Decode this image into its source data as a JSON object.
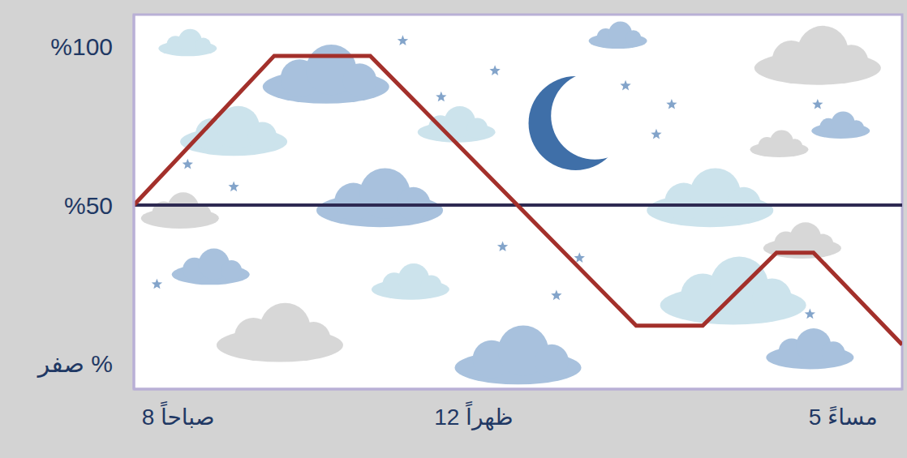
{
  "chart_data": {
    "type": "line",
    "x": [
      7.4,
      9.3,
      10.6,
      14.2,
      15.1,
      16.1,
      16.6,
      17.8
    ],
    "series": [
      {
        "color": "#2e2a52",
        "values": [
          50,
          50,
          50,
          50,
          50,
          50,
          50,
          50
        ]
      },
      {
        "color": "#a3302b",
        "values": [
          50,
          97,
          97,
          12,
          12,
          35,
          35,
          6
        ]
      }
    ],
    "xlim": [
      7.4,
      17.8
    ],
    "xticks": [
      {
        "value": 8,
        "label": "8 صباحاً"
      },
      {
        "value": 12,
        "label": "12 ظهراً"
      },
      {
        "value": 17,
        "label": "5 مساءً"
      }
    ],
    "ylim": [
      -8,
      110
    ],
    "yticks": [
      {
        "value": 0,
        "label": "صفر %"
      },
      {
        "value": 50,
        "label": "%50"
      },
      {
        "value": 100,
        "label": "%100"
      }
    ],
    "grid": false
  }
}
